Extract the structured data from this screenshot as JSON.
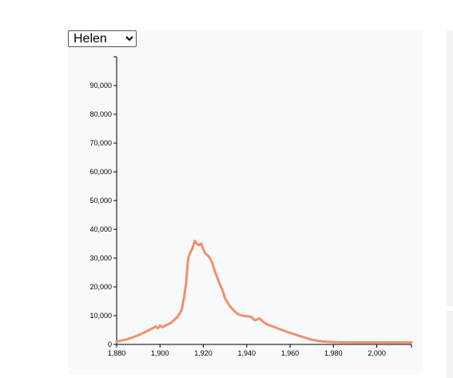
{
  "name_select": {
    "value": "Helen",
    "options": [
      "Helen"
    ]
  },
  "chart_data": {
    "type": "line",
    "title": "",
    "xlabel": "",
    "ylabel": "",
    "xlim": [
      1880,
      2016
    ],
    "ylim": [
      0,
      100000
    ],
    "x_ticks": [
      1880,
      1900,
      1920,
      1940,
      1960,
      1980,
      2000
    ],
    "x_tick_labels": [
      "1,880",
      "1,900",
      "1,920",
      "1,940",
      "1,960",
      "1,980",
      "2,000"
    ],
    "y_ticks": [
      0,
      10000,
      20000,
      30000,
      40000,
      50000,
      60000,
      70000,
      80000,
      90000
    ],
    "y_tick_labels": [
      "0",
      "10,000",
      "20,000",
      "30,000",
      "40,000",
      "50,000",
      "60,000",
      "70,000",
      "80,000",
      "90,000"
    ],
    "grid": false,
    "line_color": "#f0906c",
    "series": [
      {
        "x": [
          1880,
          1885,
          1890,
          1895,
          1898,
          1899,
          1900,
          1901,
          1905,
          1908,
          1910,
          1911,
          1912,
          1913,
          1914,
          1915,
          1916,
          1917,
          1918,
          1919,
          1920,
          1921,
          1922,
          1923,
          1924,
          1925,
          1927,
          1929,
          1930,
          1932,
          1934,
          1936,
          1938,
          1940,
          1942,
          1943,
          1944,
          1945,
          1946,
          1947,
          1948,
          1950,
          1955,
          1960,
          1965,
          1970,
          1975,
          1980,
          1985,
          1990,
          1995,
          2000,
          2005,
          2010,
          2016
        ],
        "y": [
          1000,
          1800,
          3200,
          5000,
          6200,
          5600,
          6500,
          6000,
          7500,
          9500,
          12000,
          16000,
          21000,
          30000,
          32000,
          33500,
          36000,
          35000,
          34500,
          35000,
          33000,
          31500,
          31000,
          30000,
          28500,
          26000,
          22000,
          18500,
          16000,
          13500,
          11800,
          10500,
          10000,
          9800,
          9600,
          8800,
          8400,
          8800,
          9000,
          8300,
          7600,
          6800,
          5400,
          4000,
          2800,
          1600,
          1000,
          800,
          700,
          700,
          700,
          700,
          700,
          700,
          700
        ]
      }
    ]
  }
}
